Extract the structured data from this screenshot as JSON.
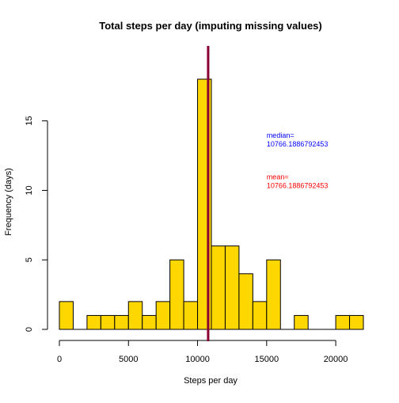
{
  "chart_data": {
    "type": "bar",
    "subtype": "histogram",
    "title": "Total steps per day (imputing missing values)",
    "xlabel": "Steps per day",
    "ylabel": "Frequency (days)",
    "bin_width": 1000,
    "bins_start": 0,
    "bin_counts": [
      2,
      0,
      1,
      1,
      1,
      2,
      1,
      2,
      5,
      2,
      18,
      6,
      6,
      4,
      2,
      5,
      0,
      1,
      0,
      0,
      1,
      1
    ],
    "xlim": [
      0,
      22000
    ],
    "ylim": [
      0,
      18
    ],
    "x_ticks": [
      0,
      5000,
      10000,
      15000,
      20000
    ],
    "y_ticks": [
      0,
      5,
      10,
      15
    ],
    "bar_color": "#FFD700",
    "bar_edge_color": "#000000",
    "median_line": {
      "value": 10766.1886792453,
      "color": "#8B0032"
    },
    "annotations": [
      {
        "label": "median=",
        "value": "10766.1886792453",
        "color": "#0000FF",
        "anchor_x": 15000,
        "anchor_y": 13.5
      },
      {
        "label": "mean=",
        "value": "10766.1886792453",
        "color": "#FF0000",
        "anchor_x": 15000,
        "anchor_y": 10.5
      }
    ]
  }
}
